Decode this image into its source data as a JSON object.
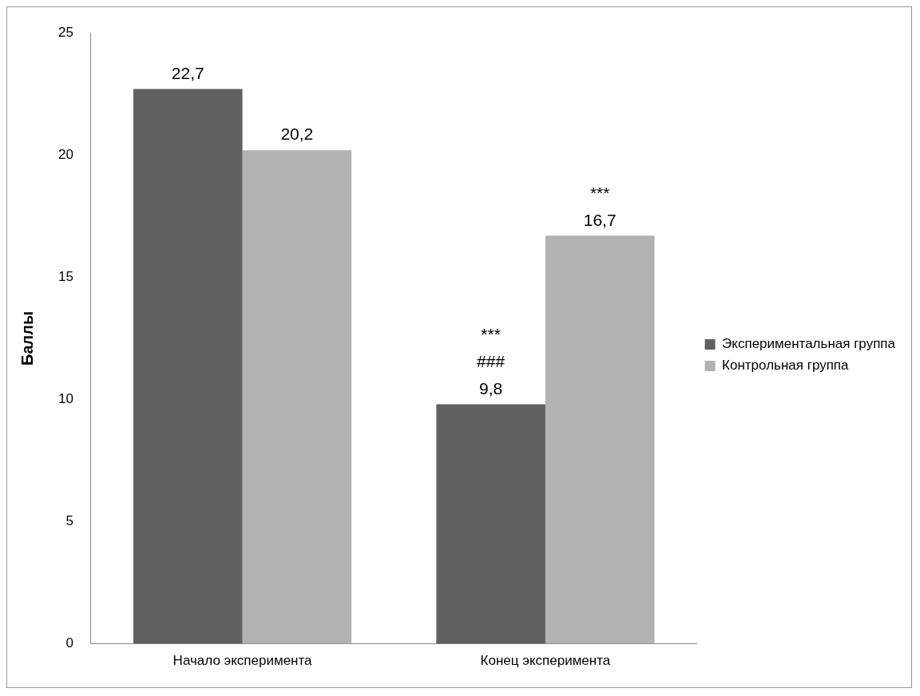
{
  "chart_data": {
    "type": "bar",
    "ylabel": "Баллы",
    "categories": [
      "Начало эксперимента",
      "Конец эксперимента"
    ],
    "series": [
      {
        "name": "Экспериментальная группа",
        "color": "#606060",
        "values": [
          22.7,
          9.8
        ],
        "value_labels": [
          "22,7",
          "9,8"
        ]
      },
      {
        "name": "Контрольная группа",
        "color": "#b2b2b2",
        "values": [
          20.2,
          16.7
        ],
        "value_labels": [
          "20,2",
          "16,7"
        ]
      }
    ],
    "ylim": [
      0,
      25
    ],
    "yticks": [
      0,
      5,
      10,
      15,
      20,
      25
    ],
    "grid": false,
    "legend": "right",
    "annotations": [
      "***",
      "###",
      "***"
    ]
  }
}
